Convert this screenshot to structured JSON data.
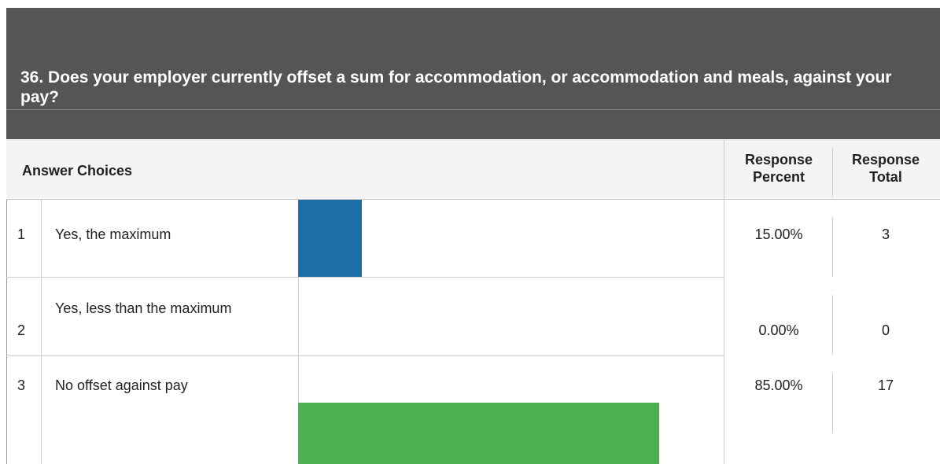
{
  "question": {
    "title": "36. Does your employer currently offset a sum for accommodation, or accommodation and meals, against your pay?"
  },
  "table": {
    "headers": {
      "choices": "Answer Choices",
      "percent": "Response Percent",
      "total": "Response Total"
    },
    "rows": [
      {
        "number": 1,
        "label": "Yes, the maximum",
        "percent": {
          "value": 15,
          "label": "15.00%"
        },
        "total": 3,
        "color": "#1d6fa5"
      },
      {
        "number": 2,
        "label": "Yes, less than the maximum",
        "percent": {
          "value": 0,
          "label": "0.00%"
        },
        "total": 0,
        "color": "#1d6fa5"
      },
      {
        "number": 3,
        "label": "No offset against pay",
        "percent": {
          "value": 85,
          "label": "85.00%"
        },
        "total": 17,
        "color": "#4caf50"
      }
    ]
  }
}
